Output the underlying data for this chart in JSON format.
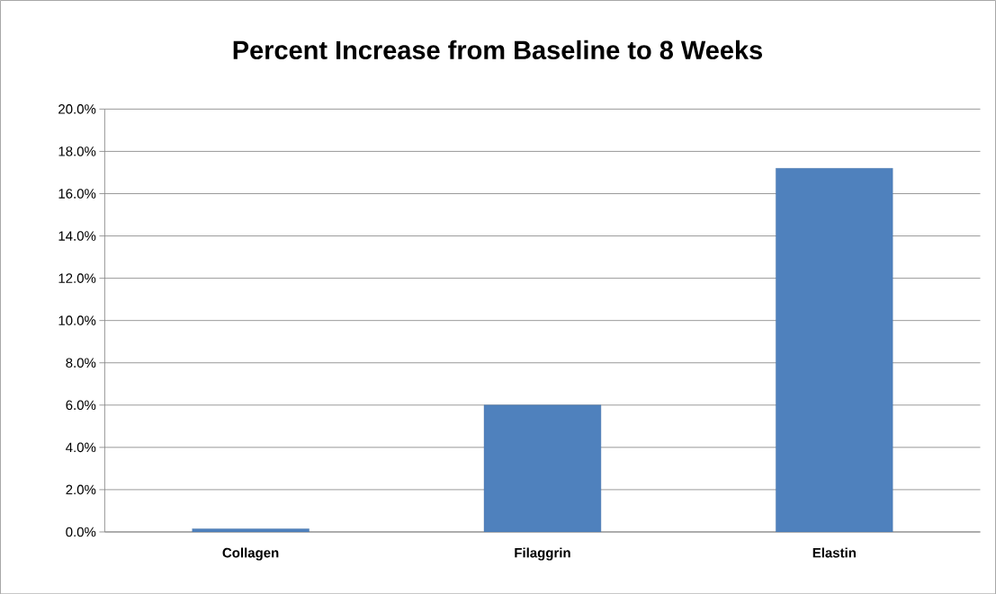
{
  "chart_data": {
    "type": "bar",
    "title": "Percent Increase from Baseline to 8 Weeks",
    "categories": [
      "Collagen",
      "Filaggrin",
      "Elastin"
    ],
    "values": [
      0.15,
      6.0,
      17.2
    ],
    "color": "#4f81bd",
    "ylim": [
      0,
      20
    ],
    "yticks": [
      {
        "value": 0,
        "label": "0.0%"
      },
      {
        "value": 2,
        "label": "2.0%"
      },
      {
        "value": 4,
        "label": "4.0%"
      },
      {
        "value": 6,
        "label": "6.0%"
      },
      {
        "value": 8,
        "label": "8.0%"
      },
      {
        "value": 10,
        "label": "10.0%"
      },
      {
        "value": 12,
        "label": "12.0%"
      },
      {
        "value": 14,
        "label": "14.0%"
      },
      {
        "value": 16,
        "label": "16.0%"
      },
      {
        "value": 18,
        "label": "18.0%"
      },
      {
        "value": 20,
        "label": "20.0%"
      }
    ],
    "grid": "y"
  }
}
